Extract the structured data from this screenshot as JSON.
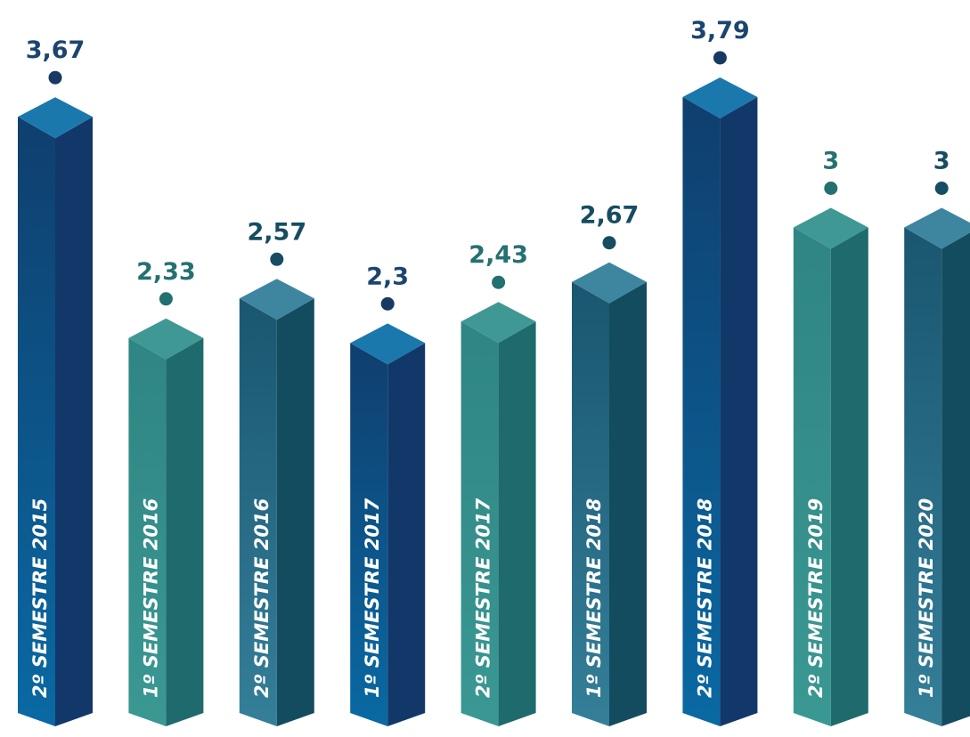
{
  "chart_data": {
    "type": "bar",
    "style": "3d-columns",
    "categories": [
      "2º SEMESTRE 2015",
      "1º SEMESTRE 2016",
      "2º SEMESTRE 2016",
      "1º SEMESTRE 2017",
      "2º SEMESTRE 2017",
      "1º SEMESTRE 2018",
      "2º SEMESTRE 2018",
      "2º SEMESTRE 2019",
      "1º SEMESTRE 2020"
    ],
    "values": [
      3.67,
      2.33,
      2.57,
      2.3,
      2.43,
      2.67,
      3.79,
      3,
      3
    ],
    "value_labels": [
      "3,67",
      "2,33",
      "2,57",
      "2,3",
      "2,43",
      "2,67",
      "3,79",
      "3",
      "3"
    ],
    "bar_themes": [
      "blue",
      "teal",
      "steel",
      "blue",
      "teal",
      "steel",
      "blue",
      "teal",
      "steel"
    ],
    "grid": false,
    "legend": "none",
    "colors": {
      "blue": {
        "label": "#1b4570",
        "dot": "#163a63",
        "front_top": "#0f3f6e",
        "front_bottom": "#0a69a3",
        "side": "#12386a",
        "top": "#1a78ad"
      },
      "teal": {
        "label": "#257172",
        "dot": "#22706f",
        "front_top": "#2f8583",
        "front_bottom": "#3a9893",
        "side": "#1f6a6d",
        "top": "#3f9893"
      },
      "steel": {
        "label": "#164d62",
        "dot": "#164d62",
        "front_top": "#1a5670",
        "front_bottom": "#357f99",
        "side": "#134c5f",
        "top": "#3e86a0"
      }
    }
  }
}
